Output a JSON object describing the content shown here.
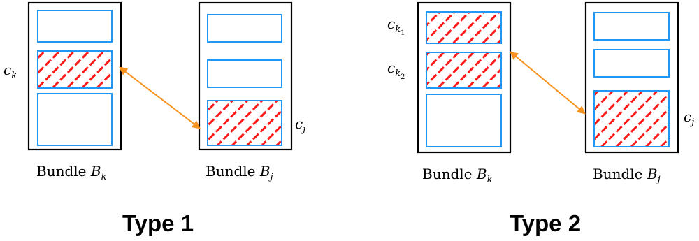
{
  "colors": {
    "bundle_border": "#000000",
    "slot_border": "#2196f3",
    "hatch": "#ff1a1a",
    "arrow": "#f7931e"
  },
  "type1": {
    "title": "Type 1",
    "bundle_k": {
      "text": "Bundle ",
      "sym": "B",
      "sub": "k"
    },
    "bundle_j": {
      "text": "Bundle ",
      "sym": "B",
      "sub": "j"
    },
    "ck": {
      "sym": "c",
      "sub": "k"
    },
    "cj": {
      "sym": "c",
      "sub": "j"
    }
  },
  "type2": {
    "title": "Type 2",
    "bundle_k": {
      "text": "Bundle ",
      "sym": "B",
      "sub": "k"
    },
    "bundle_j": {
      "text": "Bundle ",
      "sym": "B",
      "sub": "j"
    },
    "ck1": {
      "sym": "c",
      "sub": "k",
      "subsub": "1"
    },
    "ck2": {
      "sym": "c",
      "sub": "k",
      "subsub": "2"
    },
    "cj": {
      "sym": "c",
      "sub": "j"
    }
  }
}
